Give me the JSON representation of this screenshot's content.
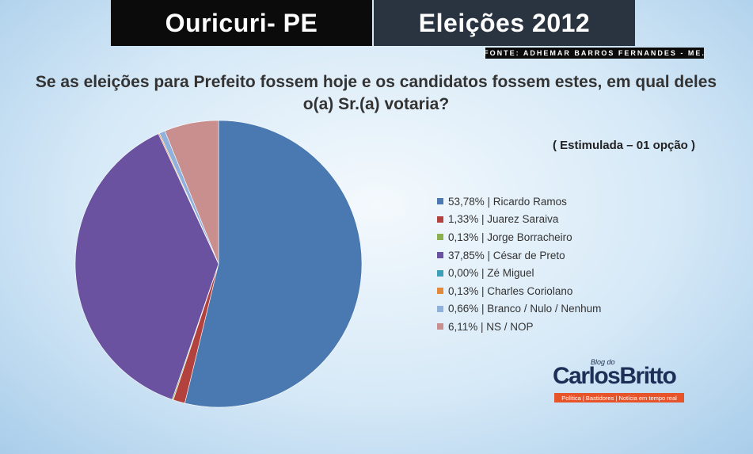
{
  "header": {
    "left_title": "Ouricuri- PE",
    "right_title": "Eleições 2012",
    "source": "FONTE: ADHEMAR BARROS FERNANDES - ME."
  },
  "logo": {
    "blog": "Blog do",
    "name": "CarlosBritto",
    "tagline": "Política | Bastidores | Notícia em tempo real"
  },
  "chart_data": {
    "type": "pie",
    "title": "Se as eleições para Prefeito fossem hoje e os candidatos fossem estes, em qual deles o(a)  Sr.(a) votaria?",
    "subtitle": "( Estimulada – 01 opção )",
    "legend_position": "right",
    "slices": [
      {
        "label": "53,78% | Ricardo Ramos",
        "value": 53.78,
        "color": "#4a78b0"
      },
      {
        "label": "1,33% | Juarez Saraiva",
        "value": 1.33,
        "color": "#b3423e"
      },
      {
        "label": "0,13% | Jorge Borracheiro",
        "value": 0.13,
        "color": "#8db04f"
      },
      {
        "label": "37,85% | César de Preto",
        "value": 37.85,
        "color": "#6a52a0"
      },
      {
        "label": "0,00% | Zé Miguel",
        "value": 0.0,
        "color": "#3e9fb8"
      },
      {
        "label": "0,13% | Charles Coriolano",
        "value": 0.13,
        "color": "#e2893c"
      },
      {
        "label": "0,66% | Branco / Nulo / Nenhum",
        "value": 0.66,
        "color": "#8fb1dc"
      },
      {
        "label": "6,11% | NS / NOP",
        "value": 6.11,
        "color": "#c98e8e"
      }
    ]
  }
}
